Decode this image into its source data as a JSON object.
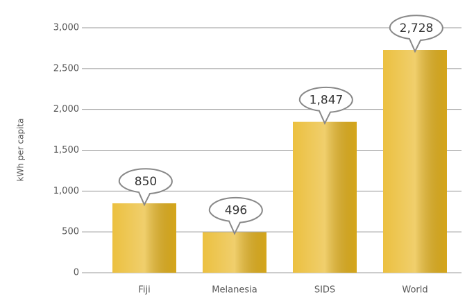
{
  "chart_data": {
    "type": "bar",
    "y_label": "kWh per capita",
    "categories": [
      "Fiji",
      "Melanesia",
      "SIDS",
      "World"
    ],
    "values": [
      850,
      496,
      1847,
      2728
    ],
    "value_labels": [
      "850",
      "496",
      "1,847",
      "2,728"
    ],
    "color": "#e8b51e",
    "ylim": [
      0,
      3000
    ],
    "yticks": [
      0,
      500,
      {
        "value": 1000,
        "label": "1,000"
      },
      {
        "value": 1500,
        "label": "1,500"
      },
      {
        "value": 2000,
        "label": "2,000"
      },
      {
        "value": 2500,
        "label": "2,500"
      },
      {
        "value": 3000,
        "label": "3,000"
      }
    ],
    "grid": true
  }
}
